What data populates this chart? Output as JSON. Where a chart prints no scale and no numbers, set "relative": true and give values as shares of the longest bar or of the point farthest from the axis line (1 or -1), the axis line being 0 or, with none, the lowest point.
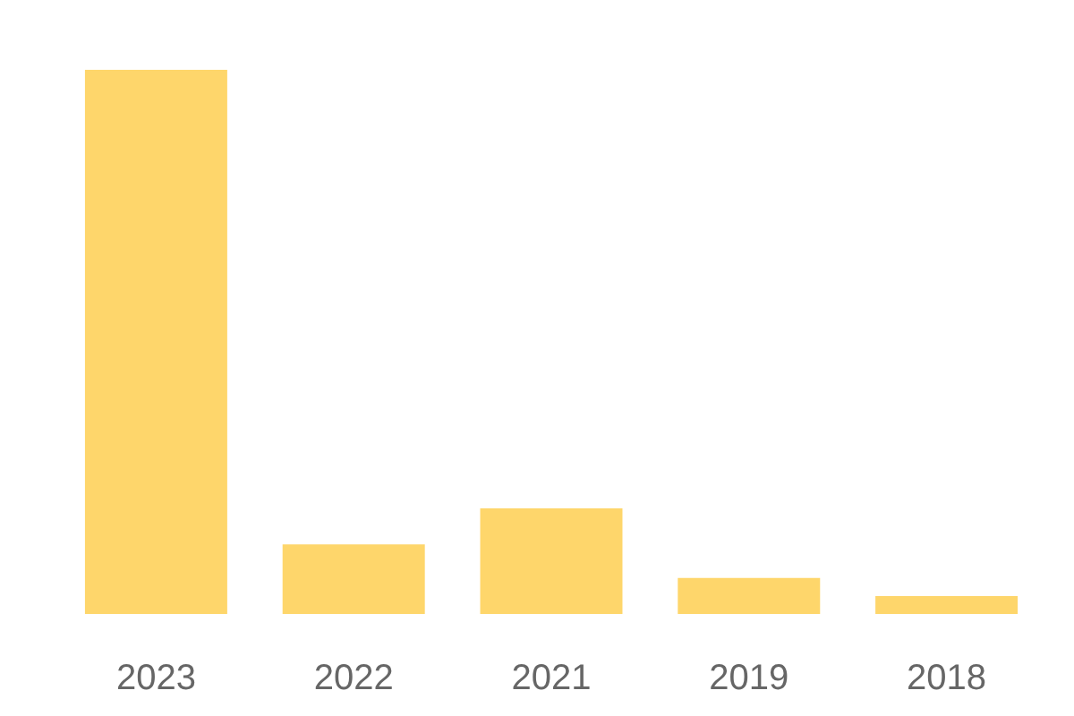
{
  "chart_data": {
    "type": "bar",
    "relative": true,
    "categories": [
      "2023",
      "2022",
      "2021",
      "2019",
      "2018"
    ],
    "values": [
      1,
      0.128,
      0.194,
      0.066,
      0.033
    ],
    "color": "#fed66b"
  }
}
